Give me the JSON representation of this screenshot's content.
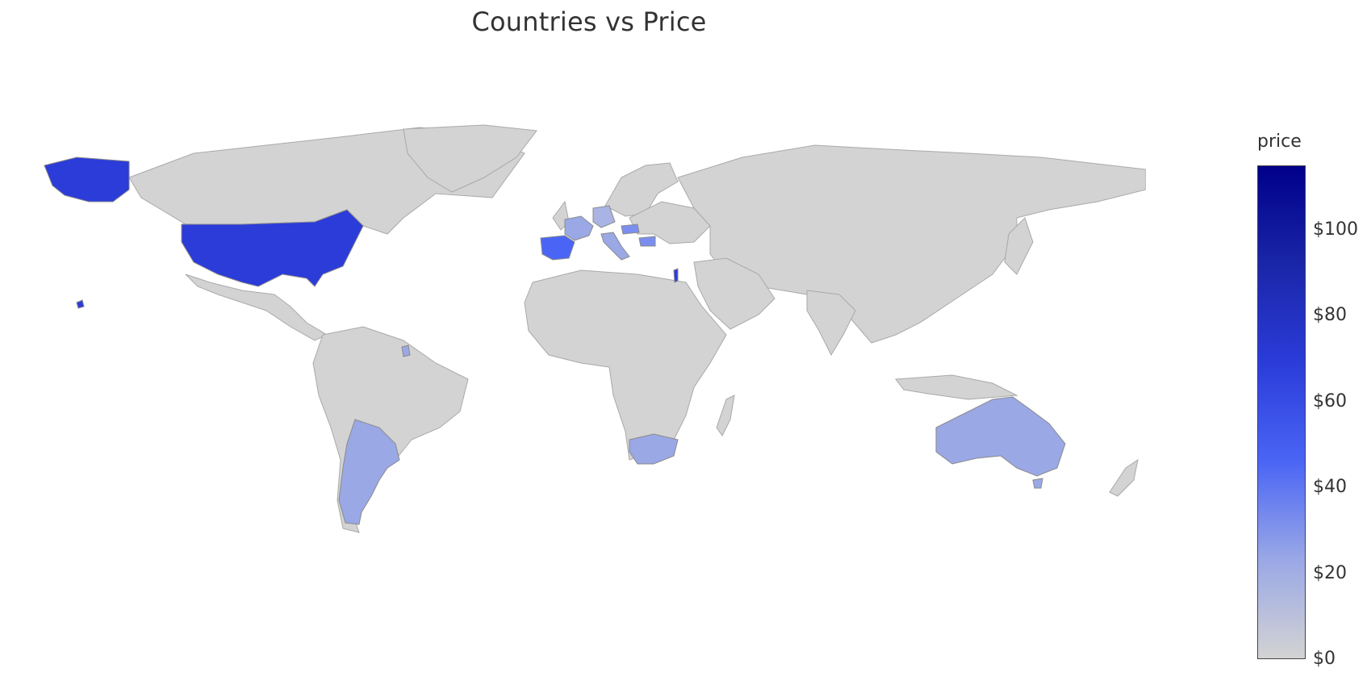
{
  "title": "Countries vs Price",
  "colorbar": {
    "title": "price",
    "ticks": [
      "$0",
      "$20",
      "$40",
      "$60",
      "$80",
      "$100"
    ],
    "tick_values": [
      0,
      20,
      40,
      60,
      80,
      100
    ],
    "range": [
      0,
      115
    ],
    "colorscale": [
      "#d3d3d3",
      "#9aa8e6",
      "#4a65f5",
      "#2b3cd9",
      "#1a26a8",
      "#00008b"
    ]
  },
  "chart_data": {
    "type": "choropleth",
    "title": "Countries vs Price",
    "colorbar_title": "price",
    "colorbar_range": [
      0,
      115
    ],
    "default_color": "#d3d3d3",
    "regions": [
      {
        "name": "United States",
        "value": 70
      },
      {
        "name": "Spain",
        "value": 45
      },
      {
        "name": "Israel",
        "value": 70
      },
      {
        "name": "Bulgaria",
        "value": 28
      },
      {
        "name": "Hungary",
        "value": 30
      },
      {
        "name": "France",
        "value": 18
      },
      {
        "name": "Germany",
        "value": 15
      },
      {
        "name": "Italy",
        "value": 18
      },
      {
        "name": "Argentina",
        "value": 20
      },
      {
        "name": "Chile",
        "value": 20
      },
      {
        "name": "Uruguay",
        "value": 18
      },
      {
        "name": "South Africa",
        "value": 20
      },
      {
        "name": "Australia",
        "value": 20
      },
      {
        "name": "French Guiana",
        "value": 18
      }
    ]
  }
}
